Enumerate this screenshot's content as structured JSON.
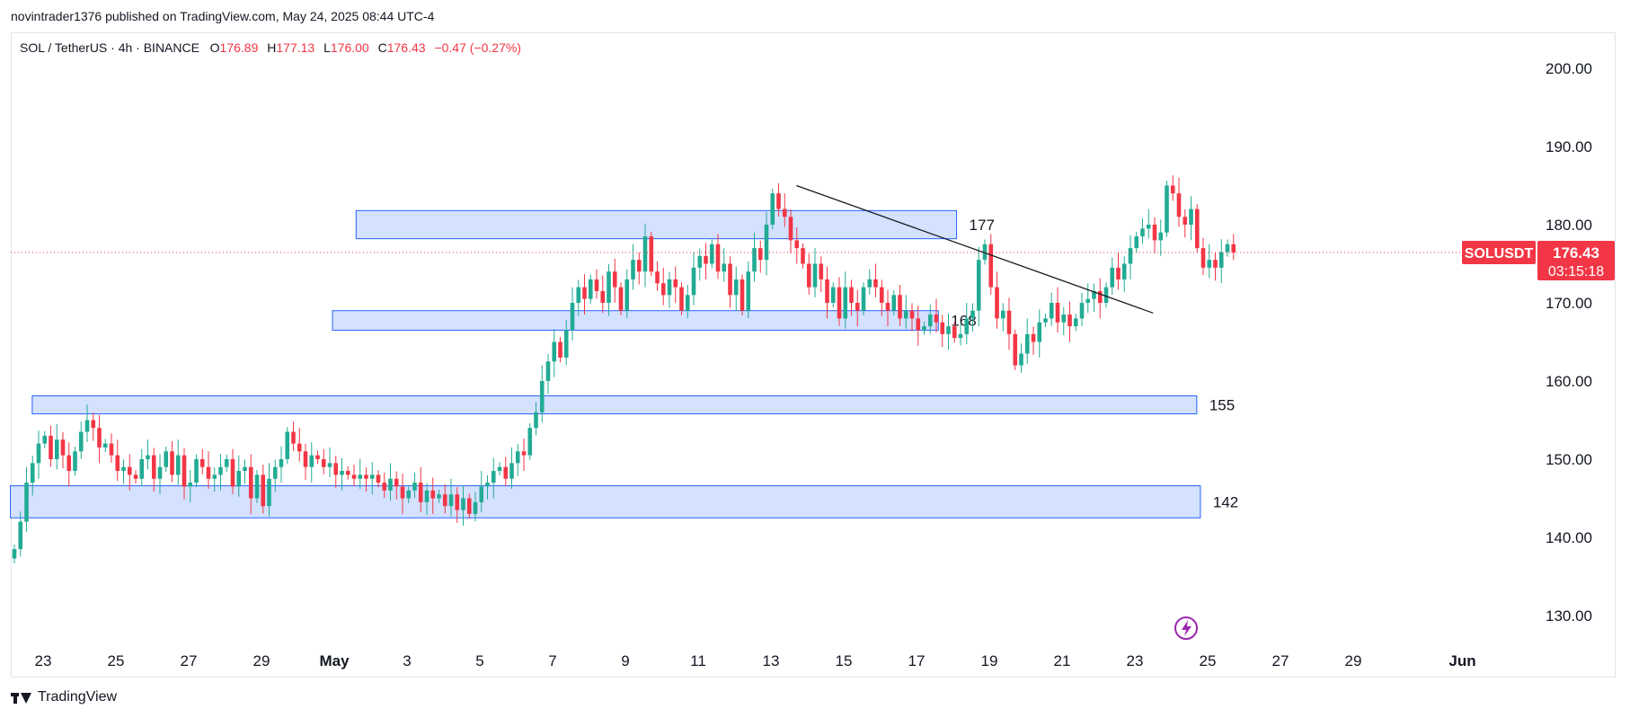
{
  "header": {
    "published": "novintrader1376 published on TradingView.com, May 24, 2025 08:44 UTC-4"
  },
  "legend": {
    "symbol": "SOL / TetherUS · 4h · BINANCE",
    "o_label": "O",
    "o": "176.89",
    "h_label": "H",
    "h": "177.13",
    "l_label": "L",
    "l": "176.00",
    "c_label": "C",
    "c": "176.43",
    "change": "−0.47 (−0.27%)"
  },
  "price_tag": {
    "symbol": "SOLUSDT",
    "price": "176.43",
    "countdown": "03:15:18",
    "color": "#f23645"
  },
  "footer": {
    "brand": "TradingView"
  },
  "colors": {
    "up": "#22ab94",
    "down": "#f23645",
    "zone_fill": "#d4e1ff",
    "zone_border": "#2962ff"
  },
  "chart_data": {
    "type": "candlestick",
    "symbol": "SOLUSDT",
    "timeframe": "4h",
    "ylim": [
      127,
      202
    ],
    "y_ticks": [
      "200.00",
      "190.00",
      "180.00",
      "170.00",
      "160.00",
      "150.00",
      "140.00",
      "130.00"
    ],
    "y_tick_values": [
      200,
      190,
      180,
      170,
      160,
      150,
      140,
      130
    ],
    "x_ticks": [
      "23",
      "25",
      "27",
      "29",
      "May",
      "3",
      "5",
      "7",
      "9",
      "11",
      "13",
      "15",
      "17",
      "19",
      "21",
      "23",
      "25",
      "27",
      "29",
      "Jun"
    ],
    "x_tick_day_index": [
      0,
      2,
      4,
      6,
      8,
      10,
      12,
      14,
      16,
      18,
      20,
      22,
      24,
      26,
      28,
      30,
      32,
      34,
      36,
      39
    ],
    "last_price": 176.43,
    "zones": [
      {
        "label": "177",
        "from_day": 8.6,
        "to_day": 25.1,
        "low": 178.2,
        "high": 181.8
      },
      {
        "label": "168",
        "from_day": 7.95,
        "to_day": 24.6,
        "low": 166.5,
        "high": 169
      },
      {
        "label": "155",
        "from_day": -0.3,
        "to_day": 31.7,
        "low": 155.8,
        "high": 158.1
      },
      {
        "label": "142",
        "from_day": -0.9,
        "to_day": 31.8,
        "low": 142.5,
        "high": 146.6
      }
    ],
    "trendline": {
      "from": {
        "day": 20.7,
        "price": 185
      },
      "to": {
        "day": 30.5,
        "price": 168.7
      }
    },
    "closes": [
      138.5,
      142,
      147,
      149.5,
      152,
      153,
      150,
      152.5,
      150.5,
      148.5,
      151,
      153.5,
      155,
      154,
      151.5,
      152,
      150.5,
      148.5,
      149,
      148,
      147.5,
      150,
      150.5,
      147.5,
      149,
      151,
      148,
      150.5,
      146.5,
      147,
      150,
      149,
      147.5,
      148,
      149,
      150,
      146.5,
      148.5,
      149,
      145,
      148,
      144,
      147.5,
      149,
      150,
      153.5,
      152,
      151,
      149,
      150.5,
      150,
      149,
      149.5,
      148,
      148.5,
      148,
      147.5,
      148,
      147.5,
      148,
      147,
      146,
      147.5,
      146.5,
      145,
      146,
      147,
      144.5,
      146,
      145,
      145.5,
      144,
      145.5,
      143.5,
      145,
      143,
      144.5,
      146.5,
      147,
      148.5,
      149,
      147.5,
      149.5,
      151,
      150.5,
      154,
      156,
      160,
      162.5,
      165,
      163,
      166.5,
      170,
      172,
      170.5,
      173,
      171.5,
      170,
      174,
      172,
      169,
      173,
      175.5,
      174,
      178.5,
      174,
      172.5,
      171,
      173,
      172,
      169,
      171,
      174.5,
      176,
      175,
      177.5,
      174,
      175,
      171,
      173,
      169,
      174,
      177,
      175.5,
      180,
      184,
      182,
      181,
      178,
      177,
      175,
      172,
      175,
      173,
      170,
      172,
      168,
      172,
      170,
      169,
      172,
      173,
      172,
      170,
      169,
      171,
      168,
      169,
      168,
      166.5,
      167,
      168.5,
      167.5,
      166,
      167,
      165.5,
      166,
      168,
      169,
      175.5,
      177.5,
      172,
      168,
      169,
      166,
      162,
      163.5,
      166,
      165,
      167.5,
      168,
      170,
      167.5,
      168.5,
      167,
      168,
      170,
      170.5,
      171.5,
      170,
      172,
      174.5,
      173,
      175,
      177,
      178.5,
      179.5,
      180,
      178,
      179,
      185,
      184,
      181,
      180,
      182,
      177,
      174.5,
      175.5,
      174.5,
      176.5,
      177.5,
      176.43
    ]
  }
}
